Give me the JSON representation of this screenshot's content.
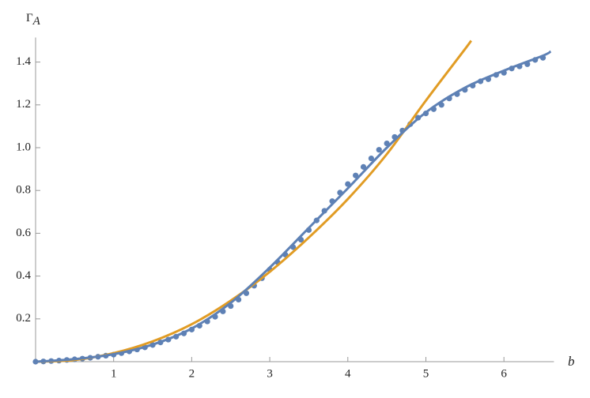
{
  "chart_data": {
    "type": "scatter",
    "x_label": "b",
    "y_label": "Γ",
    "y_label_sub": "A",
    "xlim": [
      0,
      6.6
    ],
    "ylim": [
      0,
      1.5
    ],
    "xticks": [
      1,
      2,
      3,
      4,
      5,
      6
    ],
    "yticks": [
      0.2,
      0.4,
      0.6,
      0.8,
      {
        "value": 1,
        "label": "1.0"
      },
      1.2,
      1.4
    ],
    "series": [
      {
        "type": "scatter",
        "color": "#5E81B5",
        "x": [
          0,
          0.1,
          0.2,
          0.3,
          0.4,
          0.5,
          0.6,
          0.7,
          0.8,
          0.9,
          1,
          1.1,
          1.2,
          1.3,
          1.4,
          1.5,
          1.6,
          1.7,
          1.8,
          1.9,
          2,
          2.1,
          2.2,
          2.3,
          2.4,
          2.5,
          2.6,
          2.7,
          2.8,
          2.9,
          3,
          3.1,
          3.2,
          3.3,
          3.4,
          3.5,
          3.6,
          3.7,
          3.8,
          3.9,
          4,
          4.1,
          4.2,
          4.3,
          4.4,
          4.5,
          4.6,
          4.7,
          4.8,
          4.9,
          5,
          5.1,
          5.2,
          5.3,
          5.4,
          5.5,
          5.6,
          5.7,
          5.8,
          5.9,
          6,
          6.1,
          6.2,
          6.3,
          6.4,
          6.5
        ],
        "values": [
          0,
          0.001,
          0.003,
          0.005,
          0.008,
          0.011,
          0.014,
          0.018,
          0.023,
          0.028,
          0.033,
          0.04,
          0.048,
          0.057,
          0.067,
          0.078,
          0.09,
          0.103,
          0.117,
          0.132,
          0.15,
          0.168,
          0.188,
          0.21,
          0.235,
          0.26,
          0.29,
          0.32,
          0.355,
          0.39,
          0.43,
          0.465,
          0.5,
          0.535,
          0.57,
          0.615,
          0.66,
          0.705,
          0.75,
          0.79,
          0.83,
          0.87,
          0.91,
          0.95,
          0.99,
          1.02,
          1.05,
          1.08,
          1.11,
          1.14,
          1.16,
          1.18,
          1.2,
          1.23,
          1.25,
          1.27,
          1.29,
          1.31,
          1.32,
          1.34,
          1.35,
          1.37,
          1.38,
          1.39,
          1.41,
          1.42
        ]
      },
      {
        "type": "line",
        "color": "#E19C24",
        "x": [
          0,
          0.5,
          1,
          1.5,
          2,
          2.5,
          3,
          3.5,
          4,
          4.5,
          5,
          5.5,
          5.58
        ],
        "values": [
          0,
          0.008,
          0.04,
          0.095,
          0.175,
          0.285,
          0.42,
          0.58,
          0.76,
          0.97,
          1.22,
          1.46,
          1.5
        ]
      },
      {
        "type": "line",
        "color": "#5E81B5",
        "x": [
          0,
          0.5,
          1,
          1.5,
          2,
          2.5,
          3,
          3.5,
          4,
          4.5,
          5,
          5.5,
          6,
          6.5,
          6.6
        ],
        "values": [
          0,
          0.012,
          0.035,
          0.08,
          0.155,
          0.275,
          0.44,
          0.625,
          0.81,
          1.0,
          1.165,
          1.28,
          1.36,
          1.43,
          1.45
        ]
      }
    ]
  }
}
